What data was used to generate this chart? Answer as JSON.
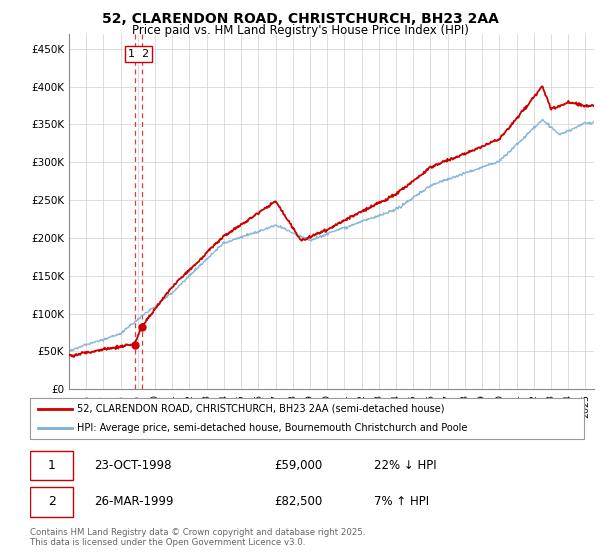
{
  "title": "52, CLARENDON ROAD, CHRISTCHURCH, BH23 2AA",
  "subtitle": "Price paid vs. HM Land Registry's House Price Index (HPI)",
  "hpi_color": "#7bafd4",
  "price_color": "#cc0000",
  "dashed_color": "#cc0000",
  "ylim": [
    0,
    470000
  ],
  "yticks": [
    0,
    50000,
    100000,
    150000,
    200000,
    250000,
    300000,
    350000,
    400000,
    450000
  ],
  "ytick_labels": [
    "£0",
    "£50K",
    "£100K",
    "£150K",
    "£200K",
    "£250K",
    "£300K",
    "£350K",
    "£400K",
    "£450K"
  ],
  "transaction1_date": "23-OCT-1998",
  "transaction1_price": "£59,000",
  "transaction1_hpi": "22% ↓ HPI",
  "transaction2_date": "26-MAR-1999",
  "transaction2_price": "£82,500",
  "transaction2_hpi": "7% ↑ HPI",
  "legend_line1": "52, CLARENDON ROAD, CHRISTCHURCH, BH23 2AA (semi-detached house)",
  "legend_line2": "HPI: Average price, semi-detached house, Bournemouth Christchurch and Poole",
  "footer": "Contains HM Land Registry data © Crown copyright and database right 2025.\nThis data is licensed under the Open Government Licence v3.0.",
  "trans1_x": 1998.81,
  "trans1_y": 59000,
  "trans2_x": 1999.23,
  "trans2_y": 82500,
  "xmin": 1995,
  "xmax": 2025.5
}
